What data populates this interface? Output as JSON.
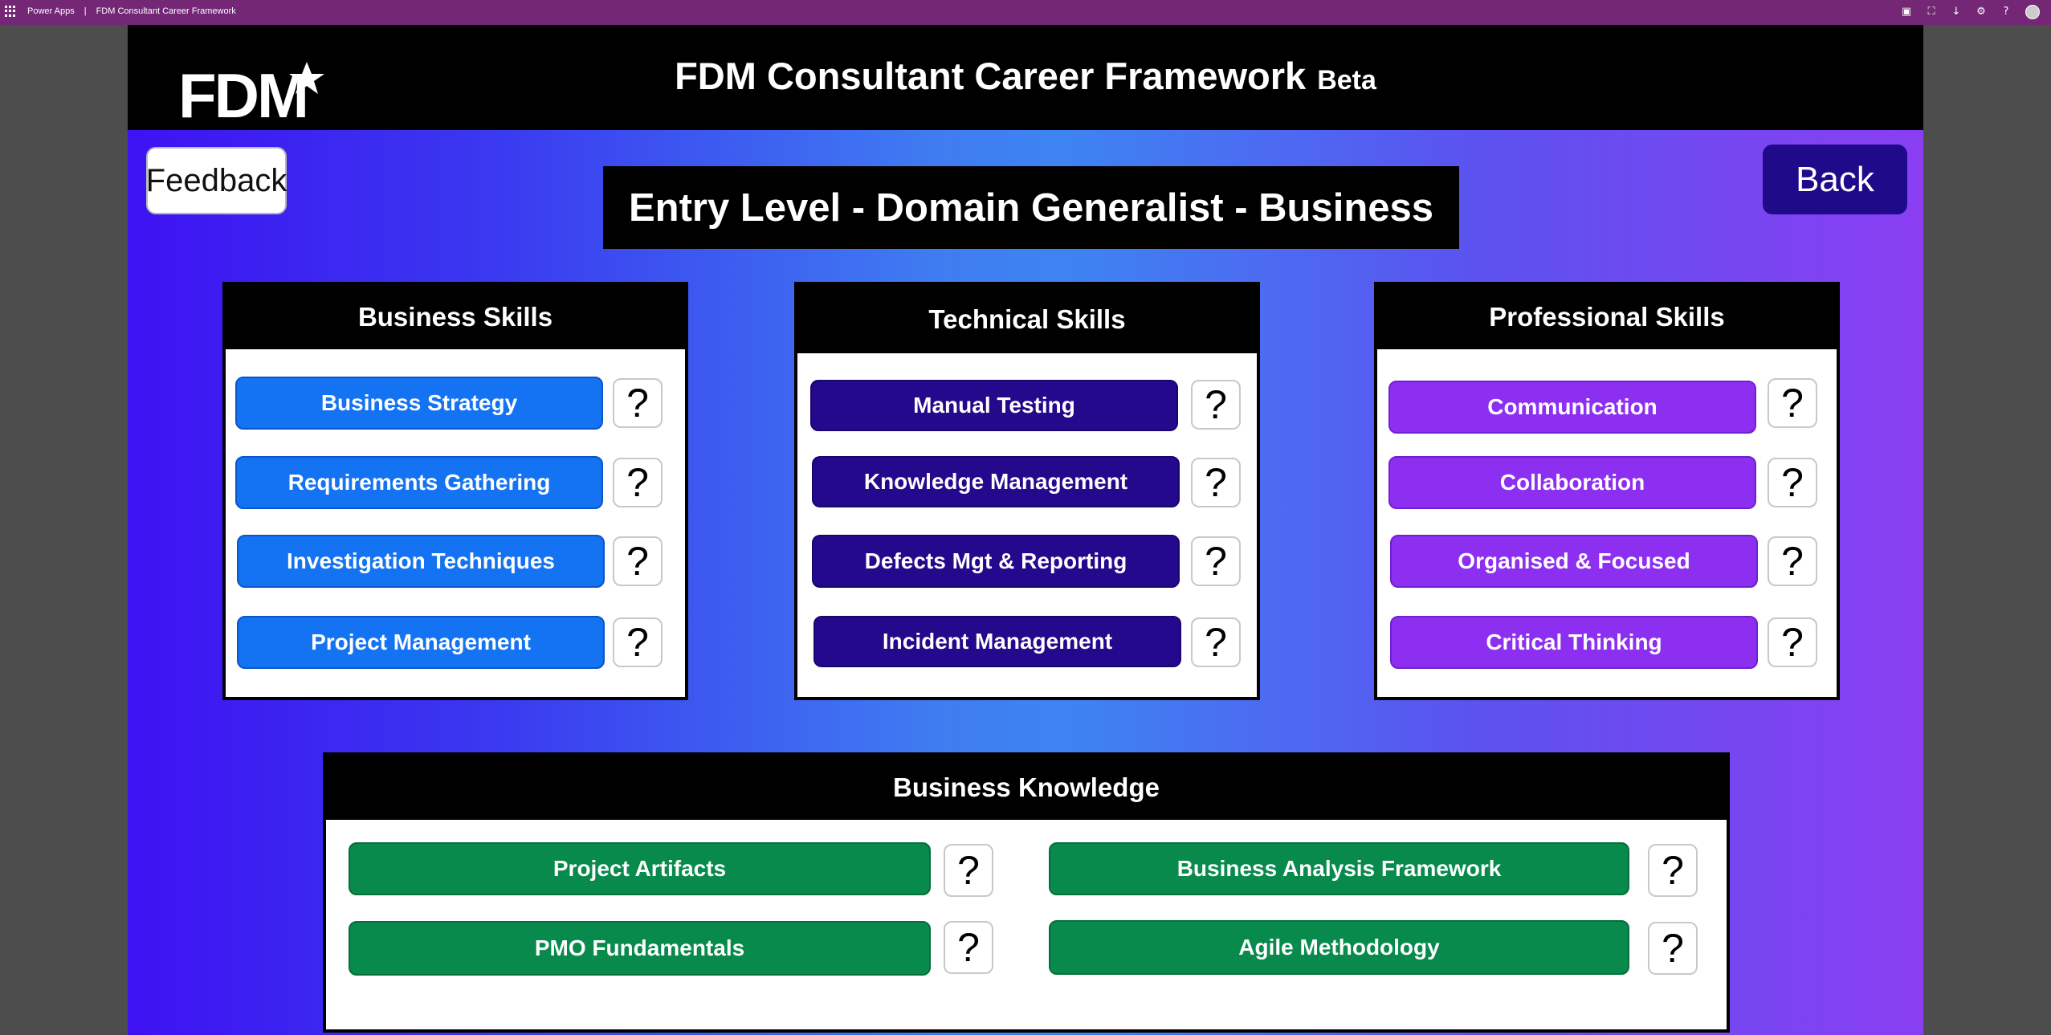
{
  "browser_bar": {
    "app_name": "Power Apps",
    "separator": "|",
    "app_title": "FDM Consultant Career Framework"
  },
  "header": {
    "logo_text": "FDM",
    "title": "FDM Consultant Career Framework",
    "badge": "Beta"
  },
  "buttons": {
    "feedback": "Feedback",
    "back": "Back",
    "help": "?"
  },
  "level_title": "Entry Level - Domain Generalist - Business",
  "panels": {
    "business_skills": {
      "title": "Business Skills",
      "items": [
        "Business Strategy",
        "Requirements Gathering",
        "Investigation Techniques",
        "Project Management"
      ]
    },
    "technical_skills": {
      "title": "Technical Skills",
      "items": [
        "Manual Testing",
        "Knowledge Management",
        "Defects Mgt & Reporting",
        "Incident Management"
      ]
    },
    "professional_skills": {
      "title": "Professional Skills",
      "items": [
        "Communication",
        "Collaboration",
        "Organised & Focused",
        "Critical Thinking"
      ]
    },
    "business_knowledge": {
      "title": "Business Knowledge",
      "items": [
        "Project Artifacts",
        "Business Analysis Framework",
        "PMO Fundamentals",
        "Agile Methodology"
      ]
    }
  },
  "colors": {
    "top_bar": "#742774",
    "business_skill_button": "#1473f2",
    "technical_skill_button": "#24098c",
    "professional_skill_button": "#8d2ff1",
    "knowledge_button": "#088a4d",
    "back_button": "#1f0a8a"
  }
}
